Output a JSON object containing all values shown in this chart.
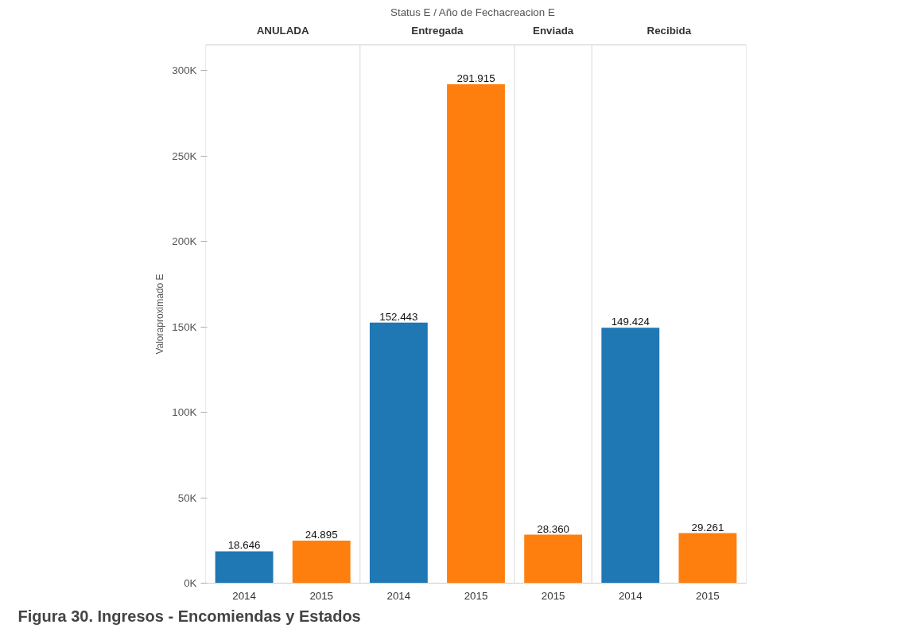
{
  "chart_data": {
    "type": "bar",
    "title": "Status E  /  Año de Fechacreacion E",
    "ylabel": "Valoraproximado E",
    "categories": [
      "2014",
      "2015",
      "2014",
      "2015",
      "2015",
      "2014",
      "2015"
    ],
    "values": [
      18646,
      24895,
      152443,
      291915,
      28360,
      149424,
      29261
    ],
    "colors": [
      "#1f77b4",
      "#ff7f0e",
      "#1f77b4",
      "#ff7f0e",
      "#ff7f0e",
      "#1f77b4",
      "#ff7f0e"
    ],
    "value_labels": [
      "18.646",
      "24.895",
      "152.443",
      "291.915",
      "28.360",
      "149.424",
      "29.261"
    ],
    "ylim": [
      0,
      315000
    ],
    "yticks": [
      {
        "value": 0,
        "label": "0K"
      },
      {
        "value": 50000,
        "label": "50K"
      },
      {
        "value": 100000,
        "label": "100K"
      },
      {
        "value": 150000,
        "label": "150K"
      },
      {
        "value": 200000,
        "label": "200K"
      },
      {
        "value": 250000,
        "label": "250K"
      },
      {
        "value": 300000,
        "label": "300K"
      }
    ],
    "grid": false,
    "annotations": [
      "ANULADA",
      "Entregada",
      "Enviada",
      "Recibida",
      "Figura 30. Ingresos - Encomiendas y Estados"
    ]
  }
}
